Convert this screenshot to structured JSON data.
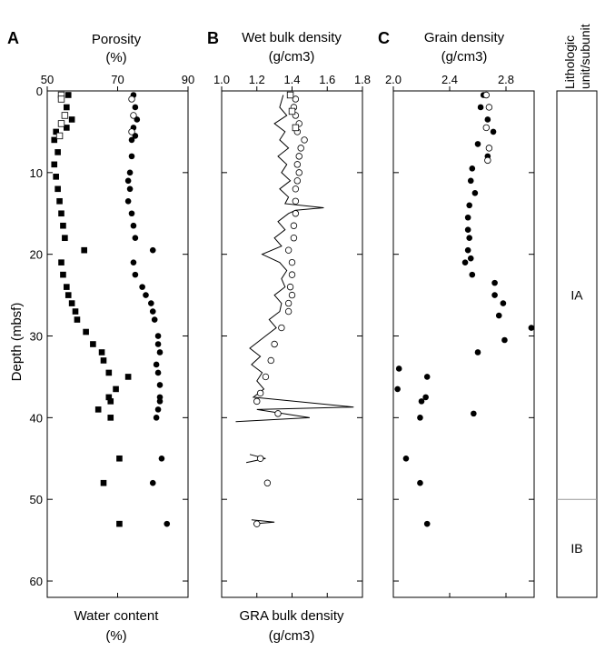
{
  "panel_letters": {
    "a": "A",
    "b": "B",
    "c": "C"
  },
  "y_axis": {
    "label": "Depth (mbsf)",
    "ticks": [
      0,
      10,
      20,
      30,
      40,
      50,
      60
    ],
    "range": [
      0,
      62
    ],
    "inverted": true
  },
  "lithology": {
    "header": [
      "Lithologic",
      "unit/subunit"
    ],
    "units": [
      {
        "label": "IA",
        "top": 0,
        "bottom": 50
      },
      {
        "label": "IB",
        "top": 50,
        "bottom": 62
      }
    ]
  },
  "chart_data": [
    {
      "type": "scatter",
      "panel": "A",
      "title_lines": [
        "Porosity",
        "(%)"
      ],
      "bottom_title_lines": [
        "Water content",
        "(%)"
      ],
      "x_ticks": [
        50,
        70,
        90
      ],
      "xlim": [
        50,
        90
      ],
      "ylim": [
        0,
        62
      ],
      "series": [
        {
          "name": "Porosity",
          "marker": "filled-circle",
          "points": [
            [
              74.5,
              0.5
            ],
            [
              75,
              2
            ],
            [
              75.5,
              3.5
            ],
            [
              74.5,
              4.5
            ],
            [
              75,
              5.5
            ],
            [
              74,
              6
            ],
            [
              74,
              8
            ],
            [
              73.5,
              10
            ],
            [
              73,
              11
            ],
            [
              73.5,
              12
            ],
            [
              73,
              13.5
            ],
            [
              74,
              15
            ],
            [
              74.5,
              16.5
            ],
            [
              75,
              18
            ],
            [
              80,
              19.5
            ],
            [
              74.5,
              21
            ],
            [
              75,
              22.5
            ],
            [
              77,
              24
            ],
            [
              78,
              25
            ],
            [
              79.5,
              26
            ],
            [
              80,
              27
            ],
            [
              80.5,
              28
            ],
            [
              81.5,
              30
            ],
            [
              81.5,
              31
            ],
            [
              82,
              32
            ],
            [
              81,
              33.5
            ],
            [
              81.5,
              34.5
            ],
            [
              82,
              36
            ],
            [
              82,
              37.5
            ],
            [
              82,
              38
            ],
            [
              81.5,
              39
            ],
            [
              81,
              40
            ],
            [
              82.5,
              45
            ],
            [
              80,
              48
            ],
            [
              84,
              53
            ]
          ]
        },
        {
          "name": "Water content (filled)",
          "marker": "filled-square",
          "points": [
            [
              56,
              0.5
            ],
            [
              55.5,
              2
            ],
            [
              57,
              3.5
            ],
            [
              55.5,
              4.5
            ],
            [
              52.5,
              5
            ],
            [
              52,
              6
            ],
            [
              53,
              7.5
            ],
            [
              52,
              9
            ],
            [
              52.5,
              10.5
            ],
            [
              53,
              12
            ],
            [
              53.5,
              13.5
            ],
            [
              54,
              15
            ],
            [
              54.5,
              16.5
            ],
            [
              55,
              18
            ],
            [
              60.5,
              19.5
            ],
            [
              54,
              21
            ],
            [
              54.5,
              22.5
            ],
            [
              55.5,
              24
            ],
            [
              56,
              25
            ],
            [
              57,
              26
            ],
            [
              58,
              27
            ],
            [
              58.5,
              28
            ],
            [
              61,
              29.5
            ],
            [
              63,
              31
            ],
            [
              65.5,
              32
            ],
            [
              66,
              33
            ],
            [
              67.5,
              34.5
            ],
            [
              73,
              35
            ],
            [
              69.5,
              36.5
            ],
            [
              67.5,
              37.5
            ],
            [
              68,
              38
            ],
            [
              64.5,
              39
            ],
            [
              68,
              40
            ],
            [
              70.5,
              45
            ],
            [
              66,
              48
            ],
            [
              70.5,
              53
            ]
          ]
        },
        {
          "name": "Water content (open)",
          "marker": "open-square",
          "points": [
            [
              54,
              0.5
            ],
            [
              54,
              1
            ],
            [
              55,
              3
            ],
            [
              54,
              4
            ],
            [
              53.5,
              5.5
            ]
          ]
        },
        {
          "name": "Porosity (open)",
          "marker": "open-circle",
          "points": [
            [
              74,
              1
            ],
            [
              74.5,
              3
            ],
            [
              74,
              5
            ]
          ]
        }
      ]
    },
    {
      "type": "line",
      "panel": "B",
      "title_lines": [
        "Wet bulk density",
        "(g/cm3)"
      ],
      "bottom_title_lines": [
        "GRA bulk density",
        "(g/cm3)"
      ],
      "x_ticks": [
        1.0,
        1.2,
        1.4,
        1.6,
        1.8
      ],
      "xlim": [
        1.0,
        1.8
      ],
      "ylim": [
        0,
        62
      ],
      "series": [
        {
          "name": "GRA bulk density",
          "style": "line",
          "points": [
            [
              1.35,
              0.5
            ],
            [
              1.33,
              2
            ],
            [
              1.37,
              3
            ],
            [
              1.3,
              4
            ],
            [
              1.36,
              5
            ],
            [
              1.33,
              6
            ],
            [
              1.38,
              7
            ],
            [
              1.32,
              8
            ],
            [
              1.37,
              9
            ],
            [
              1.34,
              10
            ],
            [
              1.39,
              11
            ],
            [
              1.33,
              12
            ],
            [
              1.38,
              13
            ],
            [
              1.36,
              13.8
            ],
            [
              1.58,
              14.3
            ],
            [
              1.42,
              14.6
            ],
            [
              1.38,
              15
            ],
            [
              1.32,
              16
            ],
            [
              1.36,
              17
            ],
            [
              1.3,
              18
            ],
            [
              1.34,
              19
            ],
            [
              1.23,
              20
            ],
            [
              1.33,
              21
            ],
            [
              1.37,
              22
            ],
            [
              1.34,
              23
            ],
            [
              1.36,
              24
            ],
            [
              1.3,
              25
            ],
            [
              1.34,
              26
            ],
            [
              1.33,
              27
            ],
            [
              1.27,
              28
            ],
            [
              1.31,
              29
            ],
            [
              1.25,
              30
            ],
            [
              1.16,
              31.5
            ],
            [
              1.22,
              32.5
            ],
            [
              1.17,
              33.5
            ],
            [
              1.23,
              34.5
            ],
            [
              1.2,
              35.5
            ],
            [
              1.24,
              36.5
            ],
            [
              1.18,
              37.5
            ],
            [
              1.75,
              38.7
            ],
            [
              1.2,
              39
            ],
            [
              1.5,
              40
            ],
            [
              1.08,
              40.5
            ]
          ]
        },
        {
          "name": "GRA bulk density (segment 2)",
          "style": "line",
          "points": [
            [
              1.16,
              44.5
            ],
            [
              1.25,
              45
            ],
            [
              1.14,
              45.5
            ]
          ]
        },
        {
          "name": "GRA bulk density (segment 3)",
          "style": "line",
          "points": [
            [
              1.17,
              52.5
            ],
            [
              1.3,
              52.8
            ],
            [
              1.18,
              53
            ]
          ]
        },
        {
          "name": "Wet bulk density",
          "marker": "open-circle",
          "points": [
            [
              1.42,
              1
            ],
            [
              1.41,
              2
            ],
            [
              1.42,
              3
            ],
            [
              1.44,
              4
            ],
            [
              1.43,
              5
            ],
            [
              1.47,
              6
            ],
            [
              1.45,
              7
            ],
            [
              1.44,
              8
            ],
            [
              1.43,
              9
            ],
            [
              1.44,
              10
            ],
            [
              1.43,
              11
            ],
            [
              1.42,
              12
            ],
            [
              1.42,
              13.5
            ],
            [
              1.42,
              15
            ],
            [
              1.41,
              16.5
            ],
            [
              1.41,
              18
            ],
            [
              1.38,
              19.5
            ],
            [
              1.4,
              21
            ],
            [
              1.4,
              22.5
            ],
            [
              1.39,
              24
            ],
            [
              1.4,
              25
            ],
            [
              1.38,
              26
            ],
            [
              1.38,
              27
            ],
            [
              1.34,
              29
            ],
            [
              1.3,
              31
            ],
            [
              1.28,
              33
            ],
            [
              1.25,
              35
            ],
            [
              1.22,
              37
            ],
            [
              1.2,
              38
            ],
            [
              1.32,
              39.5
            ],
            [
              1.22,
              45
            ],
            [
              1.26,
              48
            ],
            [
              1.2,
              53
            ]
          ]
        },
        {
          "name": "Wet bulk density (square)",
          "marker": "open-square",
          "points": [
            [
              1.39,
              0.5
            ],
            [
              1.4,
              2.5
            ],
            [
              1.42,
              4.5
            ]
          ]
        }
      ]
    },
    {
      "type": "scatter",
      "panel": "C",
      "title_lines": [
        "Grain density",
        "(g/cm3)"
      ],
      "x_ticks": [
        2.0,
        2.4,
        2.8
      ],
      "xlim": [
        2.0,
        3.0
      ],
      "ylim": [
        0,
        62
      ],
      "series": [
        {
          "name": "Grain density (filled)",
          "marker": "filled-circle",
          "points": [
            [
              2.64,
              0.5
            ],
            [
              2.62,
              2
            ],
            [
              2.67,
              3.5
            ],
            [
              2.71,
              5
            ],
            [
              2.6,
              6.5
            ],
            [
              2.67,
              8
            ],
            [
              2.56,
              9.5
            ],
            [
              2.55,
              11
            ],
            [
              2.58,
              12.5
            ],
            [
              2.54,
              14
            ],
            [
              2.53,
              15.5
            ],
            [
              2.53,
              17
            ],
            [
              2.54,
              18
            ],
            [
              2.53,
              19.5
            ],
            [
              2.55,
              20.5
            ],
            [
              2.51,
              21
            ],
            [
              2.56,
              22.5
            ],
            [
              2.72,
              23.5
            ],
            [
              2.72,
              25
            ],
            [
              2.78,
              26
            ],
            [
              2.75,
              27.5
            ],
            [
              2.98,
              29
            ],
            [
              2.79,
              30.5
            ],
            [
              2.6,
              32
            ],
            [
              2.04,
              34
            ],
            [
              2.24,
              35
            ],
            [
              2.03,
              36.5
            ],
            [
              2.23,
              37.5
            ],
            [
              2.2,
              38
            ],
            [
              2.57,
              39.5
            ],
            [
              2.19,
              40
            ],
            [
              2.09,
              45
            ],
            [
              2.19,
              48
            ],
            [
              2.24,
              53
            ]
          ]
        },
        {
          "name": "Grain density (open)",
          "marker": "open-circle",
          "points": [
            [
              2.66,
              0.5
            ],
            [
              2.68,
              2
            ],
            [
              2.66,
              4.5
            ],
            [
              2.68,
              7
            ],
            [
              2.67,
              8.5
            ]
          ]
        }
      ]
    }
  ]
}
